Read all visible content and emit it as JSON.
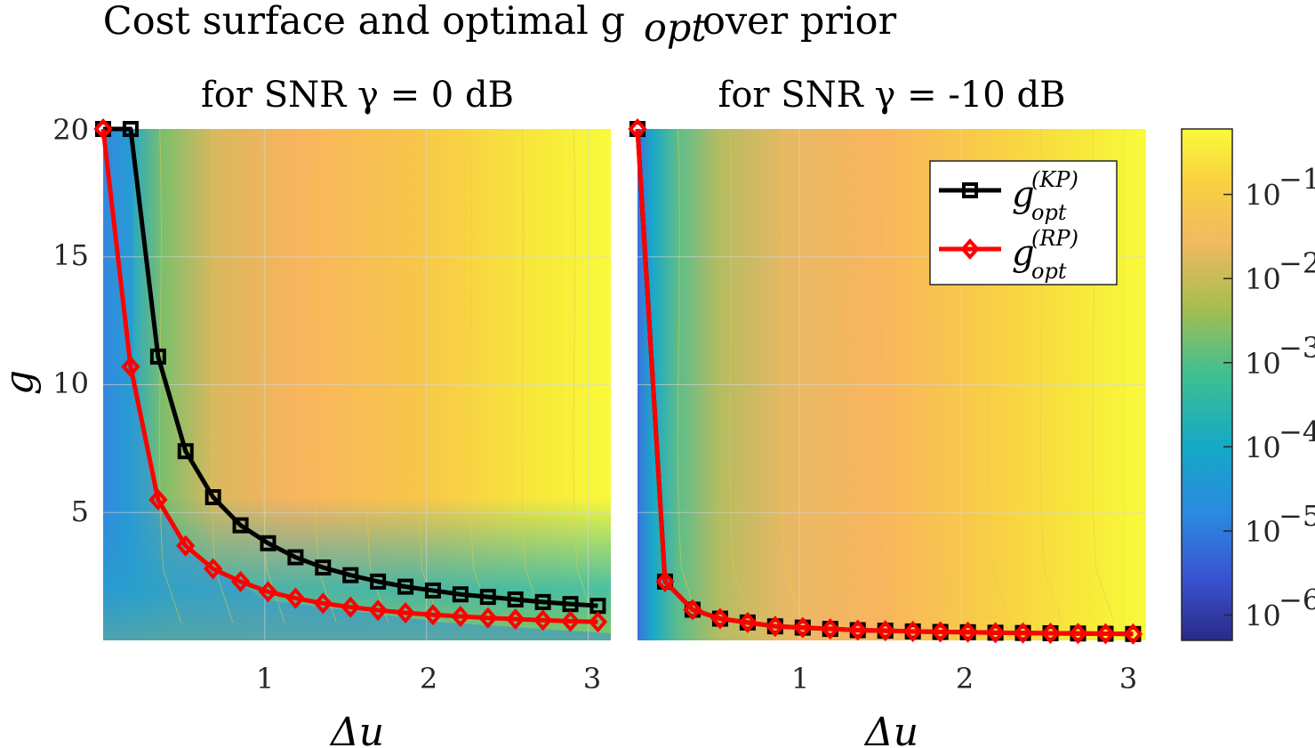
{
  "chart_data": {
    "type": "line",
    "title": "Cost surface and optimal g",
    "title_subscript": "opt",
    "title_suffix": "over prior",
    "panels": [
      {
        "subtitle": "for SNR γ = 0 dB",
        "xlabel": "Δu",
        "ylabel": "g",
        "xlim": [
          0,
          3.14
        ],
        "ylim": [
          0,
          20
        ],
        "xticks": [
          "1",
          "2",
          "3"
        ],
        "yticks": [
          "5",
          "10",
          "15",
          "20"
        ],
        "background": "log-scaled cost surface (contour)",
        "series": [
          {
            "name": "g_opt^(KP)",
            "color": "#000000",
            "marker": "square",
            "x": [
              0,
              0.17,
              0.34,
              0.51,
              0.68,
              0.85,
              1.02,
              1.19,
              1.36,
              1.53,
              1.7,
              1.87,
              2.04,
              2.21,
              2.38,
              2.55,
              2.72,
              2.89,
              3.06
            ],
            "y": [
              20,
              20,
              11.1,
              7.4,
              5.6,
              4.5,
              3.8,
              3.25,
              2.85,
              2.55,
              2.3,
              2.1,
              1.95,
              1.8,
              1.7,
              1.6,
              1.5,
              1.42,
              1.35
            ]
          },
          {
            "name": "g_opt^(RP)",
            "color": "#ff0000",
            "marker": "diamond",
            "x": [
              0,
              0.17,
              0.34,
              0.51,
              0.68,
              0.85,
              1.02,
              1.19,
              1.36,
              1.53,
              1.7,
              1.87,
              2.04,
              2.21,
              2.38,
              2.55,
              2.72,
              2.89,
              3.06
            ],
            "y": [
              20,
              10.7,
              5.5,
              3.7,
              2.8,
              2.3,
              1.9,
              1.65,
              1.45,
              1.3,
              1.18,
              1.08,
              1.0,
              0.94,
              0.88,
              0.83,
              0.79,
              0.75,
              0.72
            ]
          }
        ]
      },
      {
        "subtitle": "for SNR γ = -10 dB",
        "xlabel": "Δu",
        "xlim": [
          0,
          3.14
        ],
        "ylim": [
          0,
          20
        ],
        "xticks": [
          "1",
          "2",
          "3"
        ],
        "background": "log-scaled cost surface (contour)",
        "series": [
          {
            "name": "g_opt^(KP)",
            "color": "#000000",
            "marker": "square",
            "x": [
              0,
              0.17,
              0.34,
              0.51,
              0.68,
              0.85,
              1.02,
              1.19,
              1.36,
              1.53,
              1.7,
              1.87,
              2.04,
              2.21,
              2.38,
              2.55,
              2.72,
              2.89,
              3.06
            ],
            "y": [
              20,
              2.3,
              1.2,
              0.85,
              0.7,
              0.55,
              0.5,
              0.45,
              0.4,
              0.38,
              0.35,
              0.33,
              0.32,
              0.3,
              0.29,
              0.28,
              0.27,
              0.26,
              0.25
            ]
          },
          {
            "name": "g_opt^(RP)",
            "color": "#ff0000",
            "marker": "diamond",
            "x": [
              0,
              0.17,
              0.34,
              0.51,
              0.68,
              0.85,
              1.02,
              1.19,
              1.36,
              1.53,
              1.7,
              1.87,
              2.04,
              2.21,
              2.38,
              2.55,
              2.72,
              2.89,
              3.06
            ],
            "y": [
              20,
              2.3,
              1.2,
              0.85,
              0.7,
              0.55,
              0.5,
              0.45,
              0.4,
              0.38,
              0.35,
              0.33,
              0.32,
              0.3,
              0.29,
              0.28,
              0.27,
              0.26,
              0.25
            ]
          }
        ]
      }
    ],
    "legend": {
      "location": "top-right of second panel",
      "entries": [
        {
          "base": "g",
          "sub": "opt",
          "sup": "(KP)",
          "color": "#000000",
          "marker": "square"
        },
        {
          "base": "g",
          "sub": "opt",
          "sup": "(RP)",
          "color": "#ff0000",
          "marker": "diamond"
        }
      ]
    },
    "colorbar": {
      "scale": "log",
      "colormap": "parula",
      "colors": [
        "#2a2a86",
        "#3a6ee0",
        "#16a8c8",
        "#3fbf90",
        "#b0bd4c",
        "#f7b85a",
        "#f9f93a"
      ],
      "range": [
        5e-07,
        0.6
      ],
      "ticks": [
        {
          "base": "10",
          "exp": "−1",
          "value": 0.1
        },
        {
          "base": "10",
          "exp": "−2",
          "value": 0.01
        },
        {
          "base": "10",
          "exp": "−3",
          "value": 0.001
        },
        {
          "base": "10",
          "exp": "−4",
          "value": 0.0001
        },
        {
          "base": "10",
          "exp": "−5",
          "value": 1e-05
        },
        {
          "base": "10",
          "exp": "−6",
          "value": 1e-06
        }
      ]
    }
  }
}
